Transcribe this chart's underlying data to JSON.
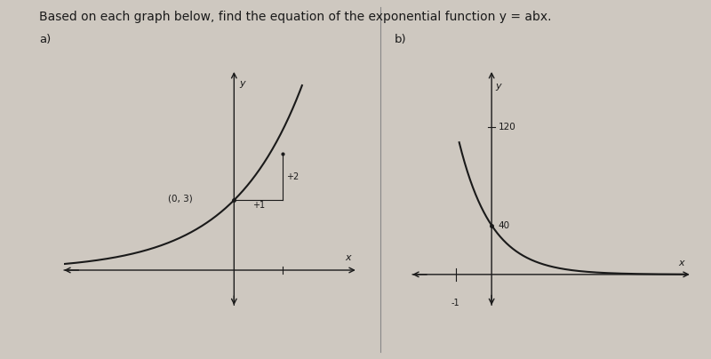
{
  "bg_color": "#cec8c0",
  "title_text": "Based on each graph below, find the equation of the exponential function y = ab",
  "title_x_super": "x",
  "title_fontsize": 10,
  "label_a": "a)",
  "label_b": "b)",
  "divider_x": 0.535,
  "graph_a": {
    "xlim": [
      -3.5,
      2.5
    ],
    "ylim": [
      -1.5,
      8.5
    ],
    "curve_color": "#1a1a1a",
    "axis_color": "#1a1a1a",
    "point_label": "(0, 3)",
    "annotation_plus2": "+2",
    "annotation_plus1": "+1",
    "func_a": 3,
    "func_b": 2,
    "x_right_label": "x",
    "y_top_label": "y"
  },
  "graph_b": {
    "xlim": [
      -2.2,
      5.5
    ],
    "ylim": [
      -25,
      165
    ],
    "curve_color": "#1a1a1a",
    "axis_color": "#1a1a1a",
    "y_label_40": "40",
    "y_label_120": "120",
    "x_tick_label": "-1",
    "x_right_label": "x",
    "y_top_label": "y",
    "func_a": 40,
    "func_b": 0.3333
  }
}
